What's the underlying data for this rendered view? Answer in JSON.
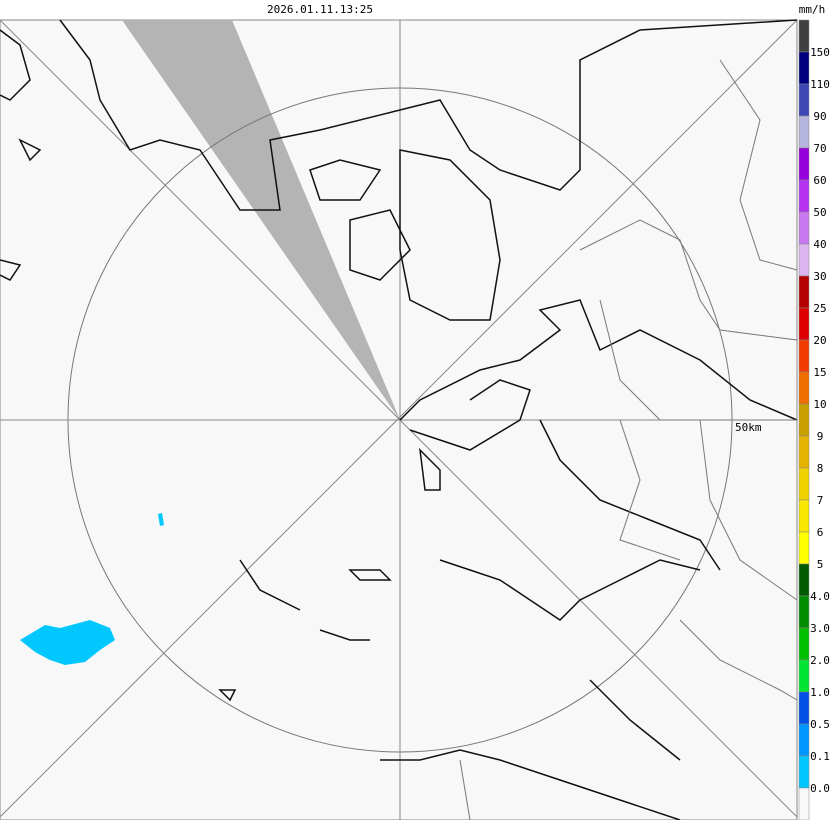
{
  "header": {
    "timestamp": "2026.01.11.13:25",
    "unit": "mm/h"
  },
  "map": {
    "range_label": "50km"
  },
  "legend": {
    "colors": [
      "#404040",
      "#000080",
      "#3c46b4",
      "#b4b4dc",
      "#9600dc",
      "#b432f0",
      "#c878f0",
      "#dcb4f0",
      "#b40000",
      "#dc0000",
      "#f03c00",
      "#f06e00",
      "#c8a000",
      "#e6b400",
      "#f0d200",
      "#fae600",
      "#ffff00",
      "#005a00",
      "#008c00",
      "#00be00",
      "#00e632",
      "#0050e6",
      "#0096ff",
      "#00c8ff",
      "#f8f8f8"
    ],
    "labels": [
      "150",
      "110",
      "90",
      "70",
      "60",
      "50",
      "40",
      "30",
      "25",
      "20",
      "15",
      "10",
      "9",
      "8",
      "7",
      "6",
      "5",
      "4.0",
      "3.0",
      "2.0",
      "1.0",
      "0.5",
      "0.1",
      "0.0"
    ]
  }
}
